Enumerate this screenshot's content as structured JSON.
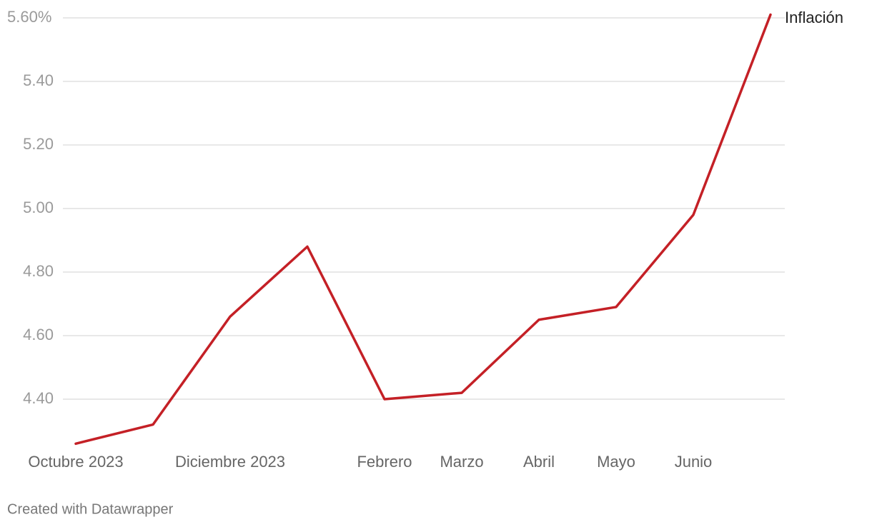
{
  "chart_data": {
    "type": "line",
    "categories": [
      "Octubre 2023",
      null,
      "Diciembre 2023",
      null,
      "Febrero",
      "Marzo",
      "Abril",
      "Mayo",
      "Junio",
      null
    ],
    "series": [
      {
        "name": "Inflación",
        "color": "#c42026",
        "values": [
          4.26,
          4.32,
          4.66,
          4.88,
          4.4,
          4.42,
          4.65,
          4.69,
          4.98,
          5.61
        ]
      }
    ],
    "ylim": [
      4.26,
      5.61
    ],
    "yticks": [
      {
        "value": 4.4,
        "label": "4.40"
      },
      {
        "value": 4.6,
        "label": "4.60"
      },
      {
        "value": 4.8,
        "label": "4.80"
      },
      {
        "value": 5.0,
        "label": "5.00"
      },
      {
        "value": 5.2,
        "label": "5.20"
      },
      {
        "value": 5.4,
        "label": "5.40"
      },
      {
        "value": 5.6,
        "label": "5.60%"
      }
    ],
    "grid": true,
    "footer": "Created with Datawrapper"
  }
}
